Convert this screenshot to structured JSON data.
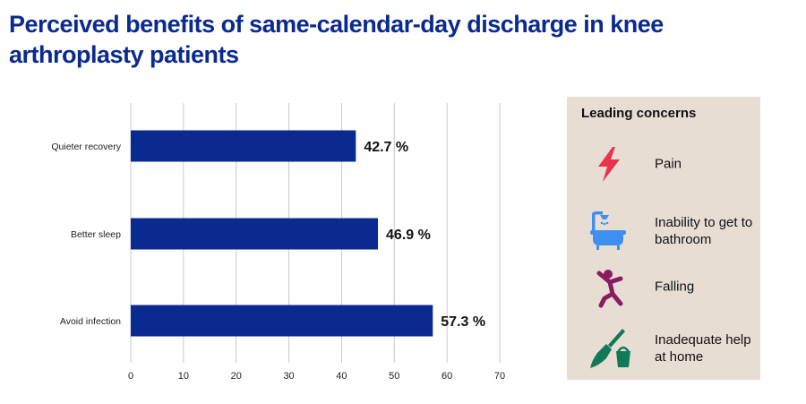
{
  "title": "Perceived benefits of same-calendar-day discharge in knee arthroplasty patients",
  "chart_data": {
    "type": "bar",
    "orientation": "horizontal",
    "categories": [
      "Quieter recovery",
      "Better sleep",
      "Avoid infection"
    ],
    "values": [
      42.7,
      46.9,
      57.3
    ],
    "value_labels": [
      "42.7 %",
      "46.9 %",
      "57.3 %"
    ],
    "xlim": [
      0,
      70
    ],
    "x_ticks": [
      0,
      10,
      20,
      30,
      40,
      50,
      60,
      70
    ],
    "grid": "vertical",
    "bar_color": "#0b2a8f"
  },
  "concerns": {
    "title": "Leading concerns",
    "items": [
      {
        "label": "Pain",
        "icon": "lightning-bolt-icon",
        "color": "#e8344e"
      },
      {
        "label": "Inability to get to bathroom",
        "icon": "bathtub-shower-icon",
        "color": "#3f8ff0"
      },
      {
        "label": "Falling",
        "icon": "falling-person-icon",
        "color": "#8a1a62"
      },
      {
        "label": "Inadequate help at home",
        "icon": "broom-bucket-icon",
        "color": "#0f7a55"
      }
    ]
  }
}
